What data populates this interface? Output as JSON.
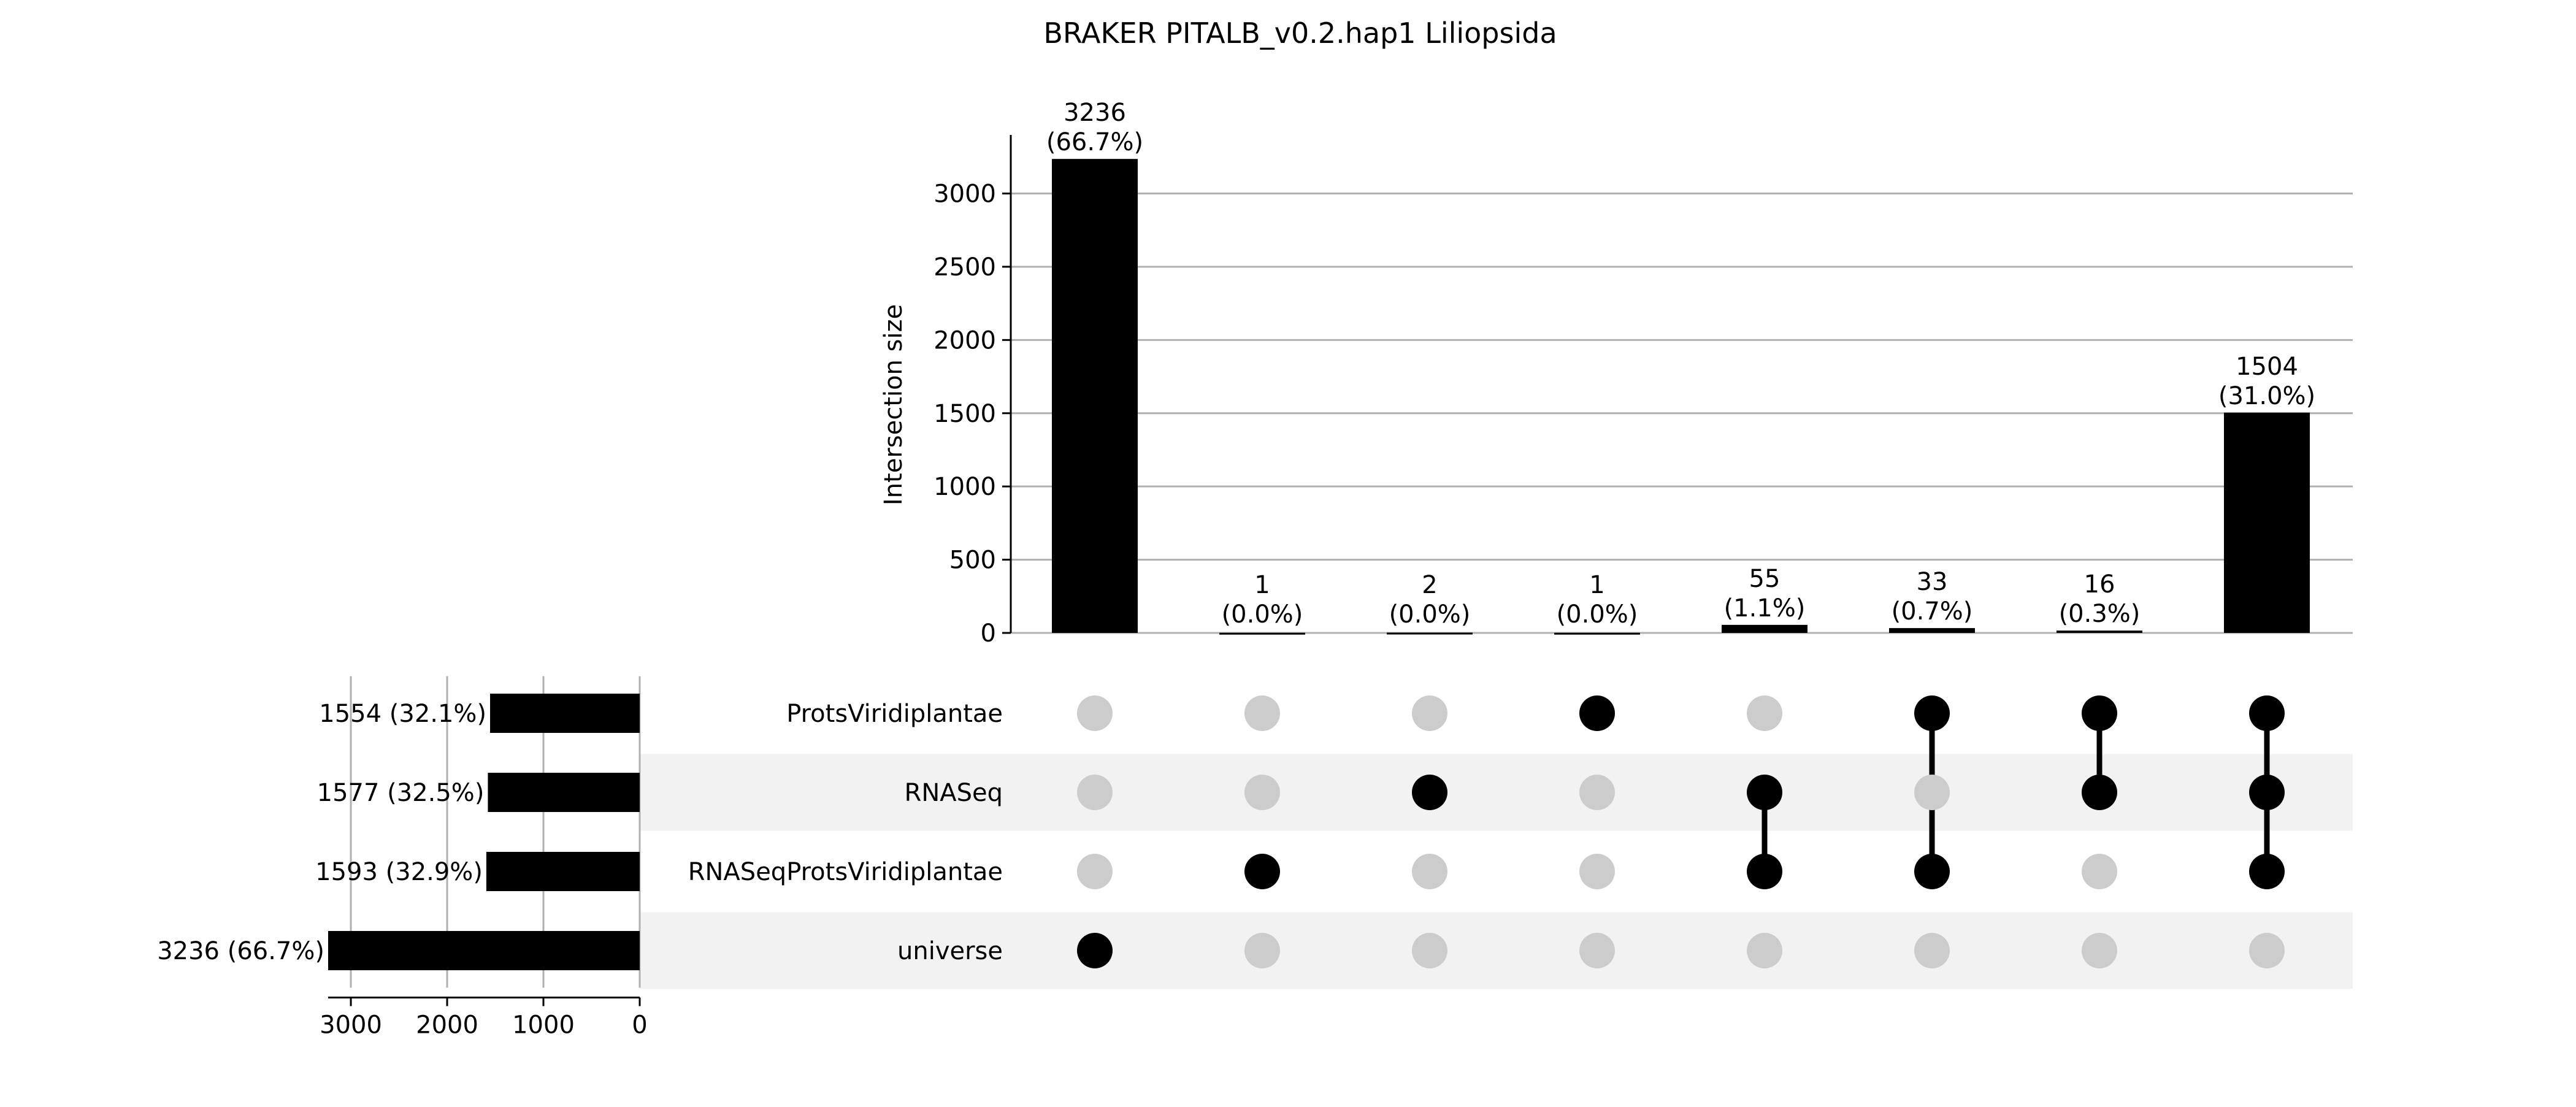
{
  "chart_data": {
    "type": "upset",
    "title": "BRAKER PITALB_v0.2.hap1 Liliopsida",
    "ylabel": "Intersection size",
    "ylim": [
      0,
      3400
    ],
    "yticks": [
      "0",
      "500",
      "1000",
      "1500",
      "2000",
      "2500",
      "3000"
    ],
    "grid": true,
    "sets": [
      {
        "name": "ProtsViridiplantae",
        "size": 1554,
        "label": "1554 (32.1%)"
      },
      {
        "name": "RNASeq",
        "size": 1577,
        "label": "1577 (32.5%)"
      },
      {
        "name": "RNASeqProtsViridiplantae",
        "size": 1593,
        "label": "1593 (32.9%)"
      },
      {
        "name": "universe",
        "size": 3236,
        "label": "3236 (66.7%)"
      }
    ],
    "set_size_axis": {
      "xlim": [
        3236,
        0
      ],
      "ticks": [
        "3000",
        "2000",
        "1000",
        "0"
      ]
    },
    "intersections": [
      {
        "members": [
          "universe"
        ],
        "value": 3236,
        "count_label": "3236",
        "pct_label": "(66.7%)"
      },
      {
        "members": [
          "RNASeqProtsViridiplantae"
        ],
        "value": 1,
        "count_label": "1",
        "pct_label": "(0.0%)"
      },
      {
        "members": [
          "RNASeq"
        ],
        "value": 2,
        "count_label": "2",
        "pct_label": "(0.0%)"
      },
      {
        "members": [
          "ProtsViridiplantae"
        ],
        "value": 1,
        "count_label": "1",
        "pct_label": "(0.0%)"
      },
      {
        "members": [
          "RNASeq",
          "RNASeqProtsViridiplantae"
        ],
        "value": 55,
        "count_label": "55",
        "pct_label": "(1.1%)"
      },
      {
        "members": [
          "ProtsViridiplantae",
          "RNASeqProtsViridiplantae"
        ],
        "value": 33,
        "count_label": "33",
        "pct_label": "(0.7%)"
      },
      {
        "members": [
          "ProtsViridiplantae",
          "RNASeq"
        ],
        "value": 16,
        "count_label": "16",
        "pct_label": "(0.3%)"
      },
      {
        "members": [
          "ProtsViridiplantae",
          "RNASeq",
          "RNASeqProtsViridiplantae"
        ],
        "value": 1504,
        "count_label": "1504",
        "pct_label": "(31.0%)"
      }
    ],
    "colors": {
      "bar": "#000000",
      "dot_active": "#000000",
      "dot_inactive": "#cccccc",
      "grid": "#b0b0b0",
      "stripe": "#f2f2f2"
    }
  }
}
